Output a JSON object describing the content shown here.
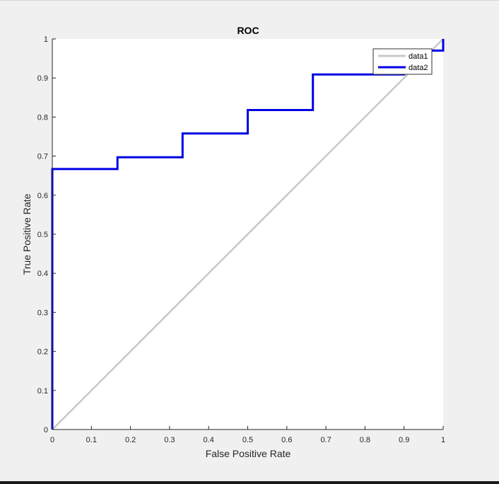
{
  "chart_data": {
    "type": "line",
    "title": "ROC",
    "xlabel": "False Positive Rate",
    "ylabel": "True Positive Rate",
    "xlim": [
      0,
      1
    ],
    "ylim": [
      0,
      1
    ],
    "xticks": [
      0,
      0.1,
      0.2,
      0.3,
      0.4,
      0.5,
      0.6,
      0.7,
      0.8,
      0.9,
      1
    ],
    "yticks": [
      0,
      0.1,
      0.2,
      0.3,
      0.4,
      0.5,
      0.6,
      0.7,
      0.8,
      0.9,
      1
    ],
    "xtick_labels": [
      "0",
      "0.1",
      "0.2",
      "0.3",
      "0.4",
      "0.5",
      "0.6",
      "0.7",
      "0.8",
      "0.9",
      "1"
    ],
    "ytick_labels": [
      "0",
      "0.1",
      "0.2",
      "0.3",
      "0.4",
      "0.5",
      "0.6",
      "0.7",
      "0.8",
      "0.9",
      "1"
    ],
    "grid": false,
    "legend": {
      "position": "top-right"
    },
    "series": [
      {
        "name": "data1",
        "color": "#c8c8c8",
        "x": [
          0,
          1
        ],
        "y": [
          0,
          1
        ]
      },
      {
        "name": "data2",
        "color": "#0000e6",
        "x": [
          0,
          0,
          0.1667,
          0.1667,
          0.3333,
          0.3333,
          0.5,
          0.5,
          0.6667,
          0.6667,
          0.9,
          0.9,
          1,
          1
        ],
        "y": [
          0,
          0.667,
          0.667,
          0.697,
          0.697,
          0.758,
          0.758,
          0.818,
          0.818,
          0.909,
          0.909,
          0.97,
          0.97,
          1
        ]
      }
    ]
  }
}
